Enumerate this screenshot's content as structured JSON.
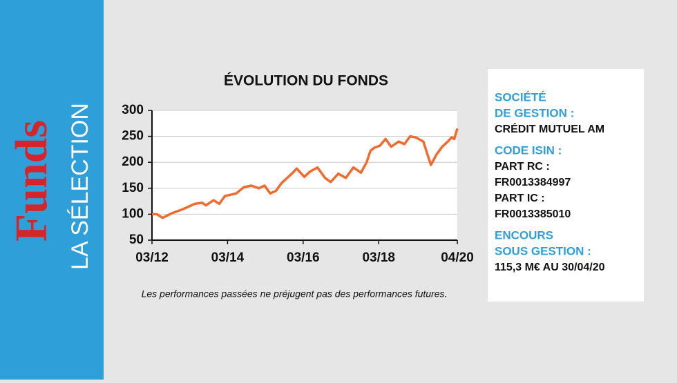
{
  "sidebar": {
    "brand": "Funds",
    "section": "LA SÉLECTION"
  },
  "chart_data": {
    "type": "line",
    "title": "ÉVOLUTION DU FONDS",
    "x": [
      2012.17,
      2012.3,
      2012.45,
      2012.7,
      2013.0,
      2013.3,
      2013.5,
      2013.6,
      2013.8,
      2013.95,
      2014.1,
      2014.4,
      2014.6,
      2014.8,
      2015.0,
      2015.15,
      2015.3,
      2015.45,
      2015.6,
      2015.9,
      2016.0,
      2016.2,
      2016.35,
      2016.55,
      2016.75,
      2016.9,
      2017.1,
      2017.3,
      2017.5,
      2017.7,
      2017.85,
      2017.95,
      2018.05,
      2018.2,
      2018.35,
      2018.5,
      2018.7,
      2018.85,
      2019.0,
      2019.15,
      2019.35,
      2019.55,
      2019.7,
      2019.85,
      2020.0,
      2020.1,
      2020.17,
      2020.25
    ],
    "series": [
      {
        "name": "Fonds",
        "color": "#f26a2e",
        "values": [
          100,
          100,
          93,
          102,
          110,
          120,
          122,
          117,
          127,
          120,
          135,
          140,
          152,
          155,
          150,
          155,
          140,
          145,
          160,
          180,
          188,
          172,
          182,
          190,
          170,
          162,
          178,
          170,
          190,
          180,
          200,
          222,
          228,
          232,
          245,
          230,
          240,
          235,
          250,
          248,
          240,
          195,
          215,
          230,
          240,
          248,
          245,
          265
        ]
      }
    ],
    "xlim": [
      2012.17,
      2020.25
    ],
    "xticks": [
      {
        "value": 2012.17,
        "label": "03/12"
      },
      {
        "value": 2014.17,
        "label": "03/14"
      },
      {
        "value": 2016.17,
        "label": "03/16"
      },
      {
        "value": 2018.17,
        "label": "03/18"
      },
      {
        "value": 2020.25,
        "label": "04/20"
      }
    ],
    "ylim": [
      50,
      300
    ],
    "yticks": [
      50,
      100,
      150,
      200,
      250,
      300
    ],
    "grid": true,
    "note": "Les performances passées ne préjugent pas des performances futures."
  },
  "info": [
    {
      "label": [
        "SOCIÉTÉ",
        "DE GESTION :"
      ],
      "value": [
        "CRÉDIT MUTUEL AM"
      ]
    },
    {
      "label": [
        "CODE ISIN :"
      ],
      "value": [
        "PART RC :",
        "FR0013384997",
        "PART IC :",
        "FR0013385010"
      ]
    },
    {
      "label": [
        "ENCOURS",
        "SOUS GESTION :"
      ],
      "value": [
        "115,3 M€ AU 30/04/20"
      ]
    }
  ]
}
